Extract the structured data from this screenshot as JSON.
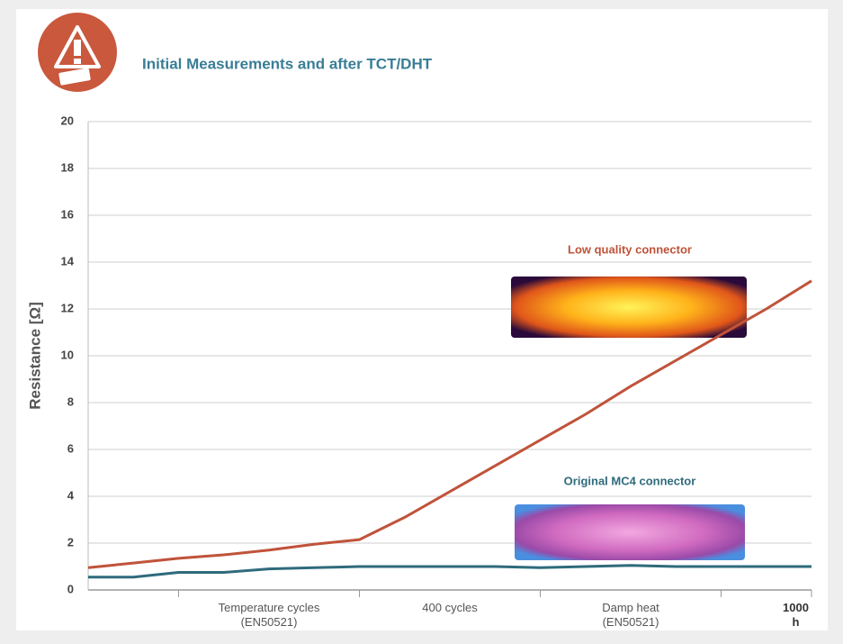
{
  "chart_data": {
    "type": "line",
    "title": "Initial Measurements and after TCT/DHT",
    "y_label": "Resistance [Ω]",
    "categories": [
      null,
      null,
      null,
      null,
      "Temperature cycles\n(EN50521)",
      null,
      null,
      null,
      "400 cycles",
      null,
      null,
      null,
      "Damp heat\n(EN50521)",
      null,
      null,
      null,
      "1000 h"
    ],
    "series": [
      {
        "name": "Low quality connector",
        "color": "#c0533a",
        "values": [
          0.95,
          1.15,
          1.35,
          1.5,
          1.7,
          1.95,
          2.15,
          3.1,
          4.2,
          5.3,
          6.4,
          7.5,
          8.7,
          9.8,
          10.9,
          12.0,
          13.2
        ]
      },
      {
        "name": "Original MC4 connector",
        "color": "#2f6b7c",
        "values": [
          0.55,
          0.55,
          0.75,
          0.75,
          0.9,
          0.95,
          1.0,
          1.0,
          1.0,
          1.0,
          0.95,
          1.0,
          1.05,
          1.0,
          1.0,
          1.0,
          1.0
        ]
      }
    ],
    "ylim": [
      0,
      20
    ],
    "yticks": [
      0,
      2,
      4,
      6,
      8,
      10,
      12,
      14,
      16,
      18,
      20
    ],
    "grid": true
  }
}
